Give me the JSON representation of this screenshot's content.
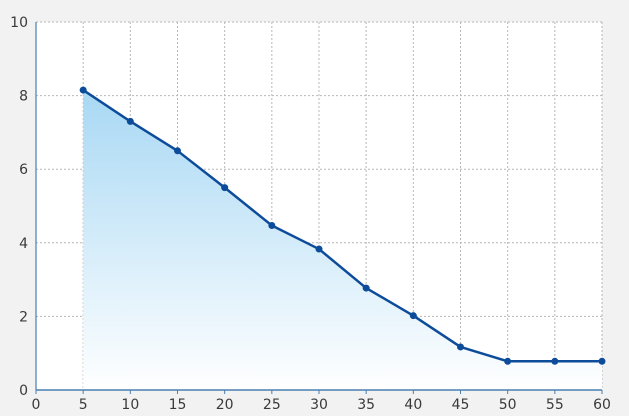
{
  "chart_data": {
    "type": "area",
    "title": "",
    "xlabel": "",
    "ylabel": "",
    "xlim": [
      0,
      60
    ],
    "ylim": [
      0,
      10
    ],
    "x_ticks": [
      0,
      5,
      10,
      15,
      20,
      25,
      30,
      35,
      40,
      45,
      50,
      55,
      60
    ],
    "y_ticks": [
      0,
      2,
      4,
      6,
      8,
      10
    ],
    "grid": true,
    "legend": "none",
    "series": [
      {
        "x": [
          5,
          10,
          15,
          20,
          25,
          30,
          35,
          40,
          45,
          50,
          55,
          60
        ],
        "values": [
          8.15,
          7.3,
          6.5,
          5.5,
          4.47,
          3.83,
          2.77,
          2.02,
          1.17,
          0.78,
          0.78,
          0.78
        ]
      }
    ]
  },
  "colors": {
    "background": "#f2f2f2",
    "plot_background": "#ffffff",
    "line": "#0d4c9a",
    "fill_top": "#a8d8f4",
    "fill_bottom": "#ffffff",
    "grid": "#b7b7b7",
    "axis": "#4a7fb0"
  }
}
